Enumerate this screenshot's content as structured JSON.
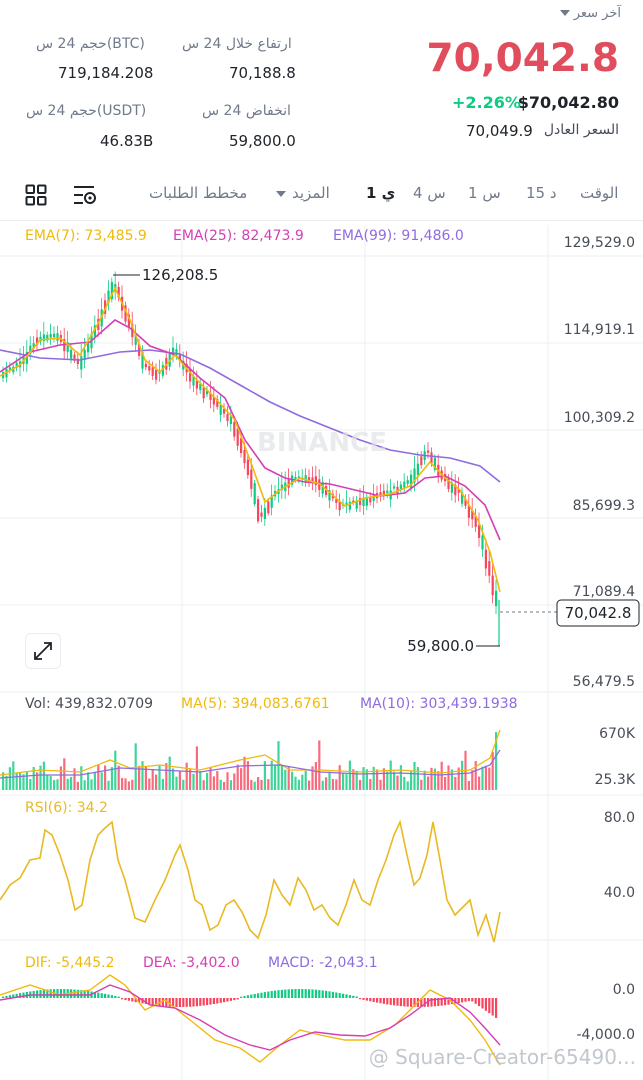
{
  "header": {
    "last_price_label": "آخر سعر",
    "last_price": "70,042.8",
    "change_pct": "+2.26%",
    "price_usd": "$70,042.80",
    "fair_price_label": "السعر العادل",
    "fair_price": "70,049.9",
    "stats": {
      "high_label": "ارتفاع خلال 24 س",
      "high_value": "70,188.8",
      "low_label": "انخفاض 24 س",
      "low_value": "59,800.0",
      "vol_btc_label": "حجم 24 س(BTC)",
      "vol_btc_value": "719,184.208",
      "vol_usdt_label": "حجم 24 س(USDT)",
      "vol_usdt_value": "46.83B"
    }
  },
  "toolbar": {
    "tabs": [
      "الوقت",
      "15 د",
      "1 س",
      "4 س",
      "1 ي",
      "المزيد",
      "مخطط الطلبات"
    ],
    "active_tab": "1 ي"
  },
  "colors": {
    "up": "#0ecb81",
    "down": "#f6465d",
    "ema7": "#f0b90b",
    "ema25": "#d63eb5",
    "ema99": "#8f6be0",
    "rsi": "#e9b923"
  },
  "indicators": {
    "ema7": "EMA(7): 73,485.9",
    "ema25": "EMA(25): 82,473.9",
    "ema99": "EMA(99): 91,486.0",
    "vol": "Vol: 439,832.0709",
    "ma5": "MA(5): 394,083.6761",
    "ma10": "MA(10): 303,439.1938",
    "rsi": "RSI(6): 34.2",
    "dif": "DIF: -5,445.2",
    "dea": "DEA: -3,402.0",
    "macd": "MACD: -2,043.1"
  },
  "price_axis": [
    "129,529.0",
    "114,919.1",
    "100,309.2",
    "85,699.3",
    "71,089.4",
    "56,479.5"
  ],
  "vol_axis": [
    "670K",
    "25.3K"
  ],
  "rsi_axis": [
    "80.0",
    "40.0"
  ],
  "macd_axis": [
    "0.0",
    "-4,000.0"
  ],
  "chart_annotations": {
    "high_marker": "126,208.5",
    "low_marker": "59,800.0",
    "current_price_tag": "70,042.8"
  },
  "watermark": "BINANCE",
  "footer_watermark": "@ Square-Creator-65490...",
  "chart_data": {
    "type": "line",
    "title": "",
    "series": [
      {
        "name": "EMA(7)",
        "values": [
          73485.9
        ]
      },
      {
        "name": "EMA(25)",
        "values": [
          82473.9
        ]
      },
      {
        "name": "EMA(99)",
        "values": [
          91486.0
        ]
      }
    ],
    "ylim": [
      56479.5,
      129529.0
    ],
    "high": 126208.5,
    "low": 59800.0,
    "last": 70042.8
  }
}
